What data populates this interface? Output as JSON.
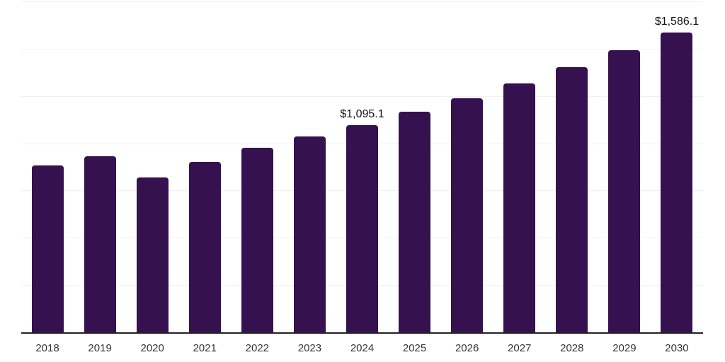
{
  "chart_data": {
    "type": "bar",
    "title": "",
    "xlabel": "",
    "ylabel": "",
    "categories": [
      "2018",
      "2019",
      "2020",
      "2021",
      "2022",
      "2023",
      "2024",
      "2025",
      "2026",
      "2027",
      "2028",
      "2029",
      "2030"
    ],
    "values": [
      883.1,
      931.4,
      819.6,
      901.5,
      976.0,
      1035.7,
      1095.1,
      1164.9,
      1239.1,
      1318.0,
      1402.0,
      1491.3,
      1586.1
    ],
    "data_labels": [
      "",
      "",
      "",
      "",
      "",
      "",
      "$1,095.1",
      "",
      "",
      "",
      "",
      "",
      "$1,586.1"
    ],
    "ylim": [
      0,
      1750
    ],
    "gridline_step": 250,
    "grid": true,
    "legend": false,
    "colors": {
      "bar": "#36114F",
      "gridline": "#f1f1f4",
      "axis_line": "#222222",
      "tick_label": "#333333",
      "data_label": "#111111",
      "background": "#ffffff"
    }
  }
}
